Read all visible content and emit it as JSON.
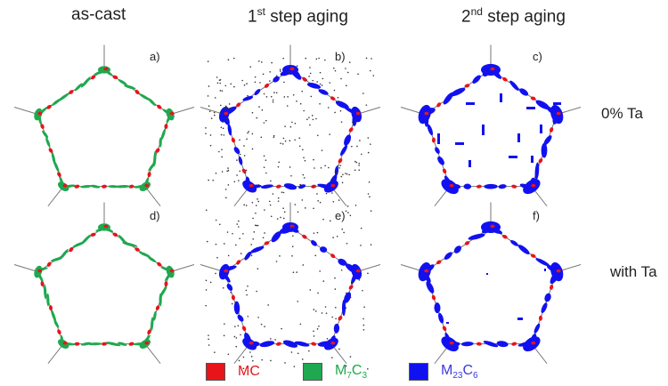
{
  "columns": [
    {
      "title": "as-cast",
      "sup": ""
    },
    {
      "title": "1",
      "sup": "st",
      "rest": " step aging"
    },
    {
      "title": "2",
      "sup": "nd",
      "rest": " step aging"
    }
  ],
  "rows": [
    {
      "label": "0% Ta"
    },
    {
      "label": "with Ta"
    }
  ],
  "panels": [
    "a)",
    "b)",
    "c)",
    "d)",
    "e)",
    "f)"
  ],
  "legend": [
    {
      "base": "MC",
      "color": "#e8141a"
    },
    {
      "base": "M",
      "sub1": "7",
      "mid": "C",
      "sub2": "3",
      "color": "#1fa84f"
    },
    {
      "base": "M",
      "sub1": "23",
      "mid": "C",
      "sub2": "6",
      "color": "#1111f0"
    }
  ],
  "colors": {
    "mc": "#e8141a",
    "m7c3": "#1fa84f",
    "m23c6": "#1111f0",
    "boundary": "#777777",
    "dots": "#333333"
  }
}
